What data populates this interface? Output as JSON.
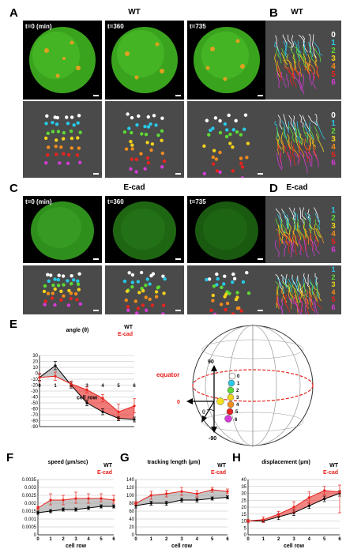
{
  "panel_labels": {
    "A": "A",
    "B": "B",
    "C": "C",
    "D": "D",
    "E": "E",
    "F": "F",
    "G": "G",
    "H": "H"
  },
  "panels": {
    "A": {
      "title": "WT",
      "times": [
        "t=0 (min)",
        "t=360",
        "t=735"
      ]
    },
    "B": {
      "title": "WT",
      "rows": [
        "0",
        "1",
        "2",
        "3",
        "4",
        "5",
        "6"
      ]
    },
    "C": {
      "title": "E-cad",
      "times": [
        "t=0 (min)",
        "t=360",
        "t=735"
      ]
    },
    "D": {
      "title": "E-cad",
      "rows": [
        "1",
        "2",
        "3",
        "4",
        "5",
        "6"
      ]
    },
    "E_diagram": {
      "equator": "equator",
      "labels": [
        "90",
        "0",
        "-90",
        "θ"
      ],
      "rows": [
        "0",
        "1",
        "2",
        "3",
        "4",
        "5",
        "6"
      ]
    }
  },
  "colors": {
    "wt": "#000000",
    "ecad": "#e8231e",
    "row_colors": [
      "#ffffff",
      "#29c8e6",
      "#5dd936",
      "#f2d21c",
      "#f28c1c",
      "#e8231e",
      "#d43bd4"
    ]
  },
  "chart_data": [
    {
      "id": "E",
      "type": "line",
      "title": "angle (θ)",
      "xlabel": "cell row",
      "ylabel": "",
      "xlim": [
        0,
        6
      ],
      "ylim": [
        -90,
        30
      ],
      "yticks": [
        30,
        20,
        10,
        0,
        -10,
        -20,
        -30,
        -40,
        -50,
        -60,
        -70,
        -80,
        -90
      ],
      "x": [
        0,
        1,
        2,
        3,
        4,
        5,
        6
      ],
      "legend": [
        "WT",
        "E-cad"
      ],
      "series": [
        {
          "name": "WT",
          "color": "#000000",
          "values": [
            -7,
            13,
            -20,
            -50,
            -65,
            -76,
            -78
          ],
          "upper": [
            -2,
            20,
            -15,
            -45,
            -60,
            -73,
            -74
          ],
          "lower": [
            -12,
            6,
            -25,
            -55,
            -70,
            -80,
            -82
          ]
        },
        {
          "name": "E-cad",
          "color": "#e8231e",
          "values": [
            -7,
            -5,
            -18,
            -28,
            -42,
            -65,
            -55
          ],
          "upper": [
            0,
            2,
            -13,
            -23,
            -36,
            -52,
            -43
          ],
          "lower": [
            -14,
            -12,
            -23,
            -33,
            -48,
            -78,
            -67
          ]
        }
      ]
    },
    {
      "id": "F",
      "type": "line",
      "title": "speed (µm/sec)",
      "xlabel": "cell row",
      "ylabel": "",
      "xlim": [
        0,
        6
      ],
      "ylim": [
        0,
        0.0035
      ],
      "yticks": [
        0.0035,
        0.003,
        0.0025,
        0.002,
        0.0015,
        0.001,
        0.0005,
        0
      ],
      "x": [
        0,
        1,
        2,
        3,
        4,
        5,
        6
      ],
      "legend": [
        "WT",
        "E-cad"
      ],
      "series": [
        {
          "name": "WT",
          "color": "#000000",
          "values": [
            0.0014,
            0.0015,
            0.0016,
            0.0016,
            0.0017,
            0.0018,
            0.0018
          ],
          "upper": [
            0.0015,
            0.0016,
            0.0017,
            0.0017,
            0.0018,
            0.0019,
            0.0019
          ],
          "lower": [
            0.0013,
            0.0014,
            0.0015,
            0.0015,
            0.0016,
            0.0017,
            0.0017
          ]
        },
        {
          "name": "E-cad",
          "color": "#e8231e",
          "values": [
            0.0017,
            0.0022,
            0.0022,
            0.0023,
            0.0023,
            0.0023,
            0.0022
          ],
          "upper": [
            0.0018,
            0.0026,
            0.0025,
            0.0027,
            0.0026,
            0.0026,
            0.0025
          ],
          "lower": [
            0.0016,
            0.0019,
            0.0019,
            0.002,
            0.002,
            0.0021,
            0.002
          ]
        }
      ]
    },
    {
      "id": "G",
      "type": "line",
      "title": "tracking length (µm)",
      "xlabel": "cell row",
      "ylabel": "",
      "xlim": [
        0,
        6
      ],
      "ylim": [
        0,
        140
      ],
      "yticks": [
        140,
        120,
        100,
        80,
        60,
        40,
        20,
        0
      ],
      "x": [
        0,
        1,
        2,
        3,
        4,
        5,
        6
      ],
      "legend": [
        "WT",
        "E-cad"
      ],
      "series": [
        {
          "name": "WT",
          "color": "#000000",
          "values": [
            74,
            80,
            80,
            88,
            88,
            92,
            95
          ],
          "upper": [
            80,
            85,
            85,
            93,
            93,
            96,
            99
          ],
          "lower": [
            68,
            75,
            75,
            83,
            83,
            88,
            91
          ]
        },
        {
          "name": "E-cad",
          "color": "#e8231e",
          "values": [
            80,
            100,
            104,
            110,
            104,
            114,
            110
          ],
          "upper": [
            84,
            110,
            112,
            120,
            112,
            120,
            116
          ],
          "lower": [
            76,
            90,
            96,
            100,
            96,
            108,
            104
          ]
        }
      ]
    },
    {
      "id": "H",
      "type": "line",
      "title": "displacement (µm)",
      "xlabel": "cell row",
      "ylabel": "",
      "xlim": [
        0,
        6
      ],
      "ylim": [
        0,
        40
      ],
      "yticks": [
        40,
        35,
        30,
        25,
        20,
        15,
        10,
        5,
        0
      ],
      "x": [
        0,
        1,
        2,
        3,
        4,
        5,
        6
      ],
      "legend": [
        "WT",
        "E-cad"
      ],
      "series": [
        {
          "name": "WT",
          "color": "#000000",
          "values": [
            10,
            10,
            13,
            16,
            21,
            26,
            30
          ],
          "upper": [
            11,
            11,
            15,
            18,
            23,
            28,
            32
          ],
          "lower": [
            9,
            9,
            11,
            14,
            19,
            24,
            28
          ]
        },
        {
          "name": "E-cad",
          "color": "#e8231e",
          "values": [
            10,
            11,
            15,
            20,
            27,
            32,
            31
          ],
          "upper": [
            11,
            13,
            17,
            24,
            31,
            35,
            36
          ],
          "lower": [
            9,
            9,
            13,
            16,
            23,
            29,
            16
          ]
        }
      ]
    }
  ]
}
